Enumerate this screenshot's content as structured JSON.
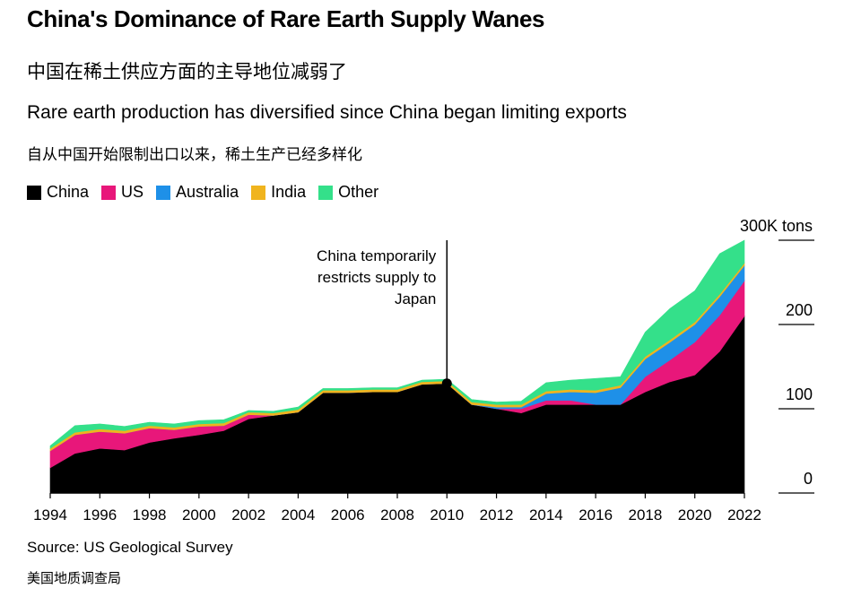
{
  "title": "China's Dominance of Rare Earth Supply Wanes",
  "title_cn": "中国在稀土供应方面的主导地位减弱了",
  "subtitle": "Rare earth production has diversified since China began limiting exports",
  "subtitle_cn": "自从中国开始限制出口以来，稀土生产已经多样化",
  "source": "Source: US Geological Survey",
  "source_cn": "美国地质调查局",
  "colors": {
    "China": "#000000",
    "US": "#e8177a",
    "Australia": "#1e90e8",
    "India": "#f0b41e",
    "Other": "#34e08a"
  },
  "chart_data": {
    "type": "area",
    "stacked": true,
    "x": [
      1994,
      1995,
      1996,
      1997,
      1998,
      1999,
      2000,
      2001,
      2002,
      2003,
      2004,
      2005,
      2006,
      2007,
      2008,
      2009,
      2010,
      2011,
      2012,
      2013,
      2014,
      2015,
      2016,
      2017,
      2018,
      2019,
      2020,
      2021,
      2022
    ],
    "series": [
      {
        "name": "China",
        "values": [
          30,
          47,
          53,
          51,
          60,
          65,
          69,
          74,
          88,
          92,
          96,
          119,
          119,
          120,
          120,
          129,
          130,
          105,
          100,
          95,
          105,
          105,
          105,
          105,
          120,
          132,
          140,
          168,
          210
        ]
      },
      {
        "name": "US",
        "values": [
          20,
          22,
          20,
          20,
          17,
          10,
          10,
          6,
          5,
          0,
          0,
          0,
          0,
          0,
          0,
          0,
          0,
          0,
          0,
          5,
          5,
          5,
          0,
          0,
          18,
          26,
          39,
          43,
          42
        ]
      },
      {
        "name": "Australia",
        "values": [
          0,
          0,
          0,
          0,
          0,
          0,
          0,
          0,
          0,
          0,
          0,
          0,
          0,
          0,
          0,
          0,
          0,
          0,
          2,
          2,
          8,
          10,
          14,
          20,
          21,
          21,
          21,
          22,
          18
        ]
      },
      {
        "name": "India",
        "values": [
          3,
          3,
          3,
          3,
          3,
          3,
          3,
          3,
          3,
          3,
          3,
          3,
          3,
          3,
          3,
          3,
          3,
          3,
          3,
          3,
          3,
          3,
          3,
          3,
          3,
          3,
          3,
          3,
          3
        ]
      },
      {
        "name": "Other",
        "values": [
          3,
          8,
          6,
          5,
          4,
          4,
          4,
          4,
          2,
          2,
          3,
          2,
          2,
          2,
          2,
          2,
          2,
          3,
          3,
          4,
          10,
          11,
          14,
          10,
          29,
          37,
          37,
          48,
          27
        ]
      }
    ],
    "x_ticks": [
      "1994",
      "1996",
      "1998",
      "2000",
      "2002",
      "2004",
      "2006",
      "2008",
      "2010",
      "2012",
      "2014",
      "2016",
      "2018",
      "2020",
      "2022"
    ],
    "y_ticks": [
      "0",
      "100",
      "200",
      "300K tons"
    ],
    "ylim": [
      0,
      300
    ],
    "annotation": {
      "x": 2010,
      "y": 130,
      "lines": [
        "China temporarily",
        "restricts supply to",
        "Japan"
      ]
    },
    "legend_position": "top-left"
  }
}
